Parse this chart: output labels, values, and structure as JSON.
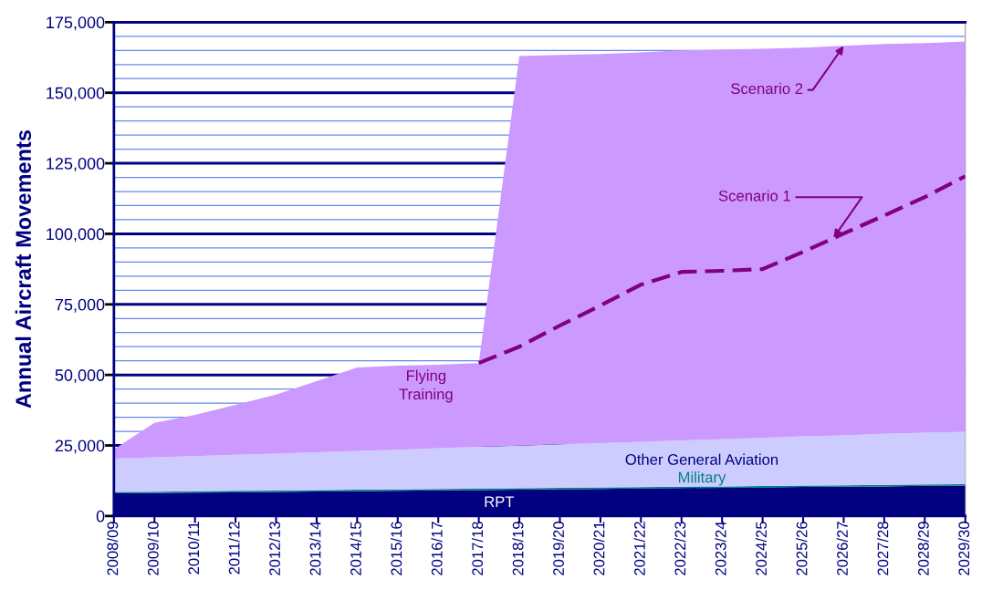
{
  "chart_data": {
    "type": "area",
    "stacked": true,
    "ylabel": "Annual Aircraft Movements",
    "categories": [
      "2008/09",
      "2009/10",
      "2010/11",
      "2011/12",
      "2012/13",
      "2013/14",
      "2014/15",
      "2015/16",
      "2016/17",
      "2017/18",
      "2018/19",
      "2019/20",
      "2020/21",
      "2021/22",
      "2022/23",
      "2023/24",
      "2024/25",
      "2025/26",
      "2026/27",
      "2027/28",
      "2028/29",
      "2029/30"
    ],
    "series": [
      {
        "name": "RPT",
        "color": "#000080",
        "values": [
          8000,
          8100,
          8300,
          8400,
          8500,
          8700,
          8800,
          8900,
          9100,
          9200,
          9300,
          9500,
          9600,
          9700,
          9900,
          10000,
          10100,
          10300,
          10400,
          10500,
          10700,
          10800
        ]
      },
      {
        "name": "Military",
        "color": "#008080",
        "values": [
          500,
          500,
          500,
          500,
          500,
          500,
          500,
          500,
          500,
          500,
          500,
          500,
          500,
          500,
          500,
          500,
          500,
          500,
          500,
          500,
          500,
          500
        ]
      },
      {
        "name": "Other General Aviation",
        "color": "#ccccff",
        "values": [
          11800,
          12200,
          12400,
          12800,
          13100,
          13400,
          13800,
          14100,
          14400,
          14800,
          15100,
          15400,
          15700,
          16100,
          16400,
          16700,
          17100,
          17400,
          17700,
          18100,
          18300,
          18700
        ]
      },
      {
        "name": "Flying Training",
        "color": "#cc99ff",
        "values": [
          3300,
          12200,
          14600,
          17700,
          20900,
          25200,
          29500,
          29800,
          29600,
          29700,
          138100,
          138000,
          137900,
          138000,
          138200,
          138100,
          137900,
          137800,
          138000,
          138200,
          138100,
          138200
        ]
      },
      {
        "name": "Scenario 1",
        "type": "line",
        "color": "#800080",
        "line_style": "dashed",
        "values": [
          null,
          null,
          null,
          null,
          null,
          null,
          null,
          null,
          null,
          54200,
          60000,
          67500,
          74600,
          82000,
          86500,
          86900,
          87500,
          93600,
          100100,
          106500,
          113000,
          120400
        ]
      }
    ],
    "annotations": [
      {
        "text": "Scenario 2",
        "x": "2026/27",
        "y": 166600
      }
    ],
    "ylim": [
      0,
      175000
    ],
    "yticks": [
      0,
      {
        "value": 5000,
        "label": null
      },
      {
        "value": 10000,
        "label": null
      },
      {
        "value": 15000,
        "label": null
      },
      {
        "value": 20000,
        "label": null
      },
      {
        "value": 25000,
        "label": "25,000"
      },
      {
        "value": 30000,
        "label": null
      },
      {
        "value": 35000,
        "label": null
      },
      {
        "value": 40000,
        "label": null
      },
      {
        "value": 45000,
        "label": null
      },
      {
        "value": 50000,
        "label": "50,000"
      },
      {
        "value": 55000,
        "label": null
      },
      {
        "value": 60000,
        "label": null
      },
      {
        "value": 65000,
        "label": null
      },
      {
        "value": 70000,
        "label": null
      },
      {
        "value": 75000,
        "label": "75,000"
      },
      {
        "value": 80000,
        "label": null
      },
      {
        "value": 85000,
        "label": null
      },
      {
        "value": 90000,
        "label": null
      },
      {
        "value": 95000,
        "label": null
      },
      {
        "value": 100000,
        "label": "100,000"
      },
      {
        "value": 105000,
        "label": null
      },
      {
        "value": 110000,
        "label": null
      },
      {
        "value": 115000,
        "label": null
      },
      {
        "value": 120000,
        "label": null
      },
      {
        "value": 125000,
        "label": "125,000"
      },
      {
        "value": 130000,
        "label": null
      },
      {
        "value": 135000,
        "label": null
      },
      {
        "value": 140000,
        "label": null
      },
      {
        "value": 145000,
        "label": null
      },
      {
        "value": 150000,
        "label": "150,000"
      },
      {
        "value": 155000,
        "label": null
      },
      {
        "value": 160000,
        "label": null
      },
      {
        "value": 165000,
        "label": null
      },
      {
        "value": 170000,
        "label": null
      },
      {
        "value": 175000,
        "label": "175,000"
      }
    ],
    "grid": "y",
    "legend": false
  }
}
